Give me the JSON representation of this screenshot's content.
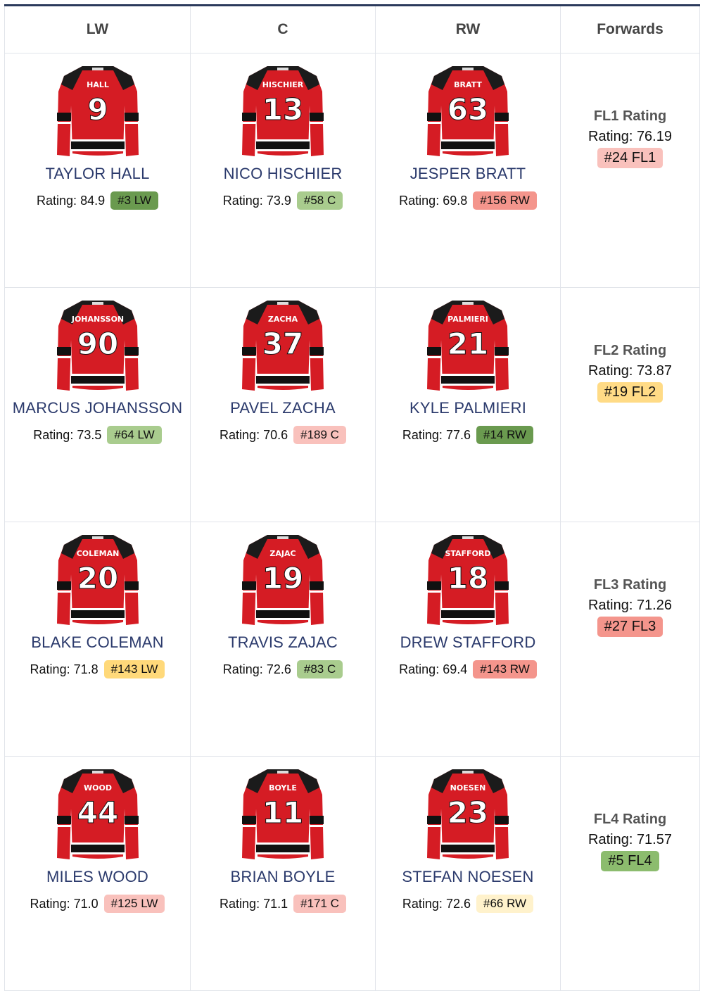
{
  "headers": [
    "LW",
    "C",
    "RW",
    "Forwards"
  ],
  "rating_prefix": "Rating:",
  "rows": [
    {
      "players": [
        {
          "name": "TAYLOR HALL",
          "jersey_name": "HALL",
          "number": "9",
          "rating": "84.9",
          "rank": "#3 LW",
          "color": "#6a9a4f"
        },
        {
          "name": "NICO HISCHIER",
          "jersey_name": "HISCHIER",
          "number": "13",
          "rating": "73.9",
          "rank": "#58 C",
          "color": "#a9cc8e"
        },
        {
          "name": "JESPER BRATT",
          "jersey_name": "BRATT",
          "number": "63",
          "rating": "69.8",
          "rank": "#156 RW",
          "color": "#f4958c"
        }
      ],
      "line": {
        "title": "FL1 Rating",
        "rating": "76.19",
        "rank": "#24 FL1",
        "color": "#f9c1bc"
      }
    },
    {
      "players": [
        {
          "name": "MARCUS JOHANSSON",
          "jersey_name": "JOHANSSON",
          "number": "90",
          "rating": "73.5",
          "rank": "#64 LW",
          "color": "#a9cc8e"
        },
        {
          "name": "PAVEL ZACHA",
          "jersey_name": "ZACHA",
          "number": "37",
          "rating": "70.6",
          "rank": "#189 C",
          "color": "#f9c1bc"
        },
        {
          "name": "KYLE PALMIERI",
          "jersey_name": "PALMIERI",
          "number": "21",
          "rating": "77.6",
          "rank": "#14 RW",
          "color": "#6a9a4f"
        }
      ],
      "line": {
        "title": "FL2 Rating",
        "rating": "73.87",
        "rank": "#19 FL2",
        "color": "#ffdb86"
      }
    },
    {
      "players": [
        {
          "name": "BLAKE COLEMAN",
          "jersey_name": "COLEMAN",
          "number": "20",
          "rating": "71.8",
          "rank": "#143 LW",
          "color": "#ffd97a"
        },
        {
          "name": "TRAVIS ZAJAC",
          "jersey_name": "ZAJAC",
          "number": "19",
          "rating": "72.6",
          "rank": "#83 C",
          "color": "#a9cc8e"
        },
        {
          "name": "DREW STAFFORD",
          "jersey_name": "STAFFORD",
          "number": "18",
          "rating": "69.4",
          "rank": "#143 RW",
          "color": "#f4958c"
        }
      ],
      "line": {
        "title": "FL3 Rating",
        "rating": "71.26",
        "rank": "#27 FL3",
        "color": "#f4958c"
      }
    },
    {
      "players": [
        {
          "name": "MILES WOOD",
          "jersey_name": "WOOD",
          "number": "44",
          "rating": "71.0",
          "rank": "#125 LW",
          "color": "#f9c1bc"
        },
        {
          "name": "BRIAN BOYLE",
          "jersey_name": "BOYLE",
          "number": "11",
          "rating": "71.1",
          "rank": "#171 C",
          "color": "#f9c1bc"
        },
        {
          "name": "STEFAN NOESEN",
          "jersey_name": "NOESEN",
          "number": "23",
          "rating": "72.6",
          "rank": "#66 RW",
          "color": "#fff2cc"
        }
      ],
      "line": {
        "title": "FL4 Rating",
        "rating": "71.57",
        "rank": "#5 FL4",
        "color": "#8cbc6e"
      }
    }
  ]
}
